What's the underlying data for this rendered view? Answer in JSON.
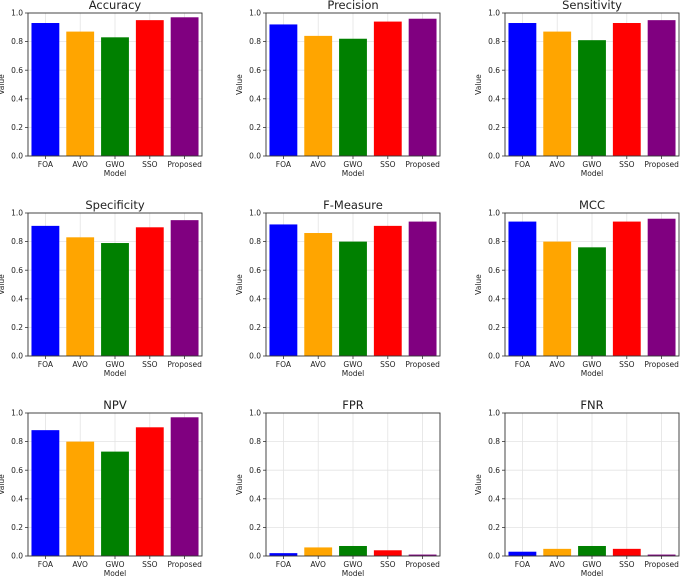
{
  "chart_data": [
    {
      "type": "bar",
      "title": "Accuracy",
      "categories": [
        "FOA",
        "AVO",
        "GWO",
        "SSO",
        "Proposed"
      ],
      "values": [
        0.93,
        0.87,
        0.83,
        0.95,
        0.97
      ],
      "xlabel": "Model",
      "ylabel": "Value",
      "ylim": [
        0,
        1.0
      ],
      "yticks": [
        "0.0",
        "0.2",
        "0.4",
        "0.6",
        "0.8",
        "1.0"
      ],
      "grid": true
    },
    {
      "type": "bar",
      "title": "Precision",
      "categories": [
        "FOA",
        "AVO",
        "GWO",
        "SSO",
        "Proposed"
      ],
      "values": [
        0.92,
        0.84,
        0.82,
        0.94,
        0.96
      ],
      "xlabel": "Model",
      "ylabel": "Value",
      "ylim": [
        0,
        1.0
      ],
      "yticks": [
        "0.0",
        "0.2",
        "0.4",
        "0.6",
        "0.8",
        "1.0"
      ],
      "grid": true
    },
    {
      "type": "bar",
      "title": "Sensitivity",
      "categories": [
        "FOA",
        "AVO",
        "GWO",
        "SSO",
        "Proposed"
      ],
      "values": [
        0.93,
        0.87,
        0.81,
        0.93,
        0.95
      ],
      "xlabel": "Model",
      "ylabel": "Value",
      "ylim": [
        0,
        1.0
      ],
      "yticks": [
        "0.0",
        "0.2",
        "0.4",
        "0.6",
        "0.8",
        "1.0"
      ],
      "grid": true
    },
    {
      "type": "bar",
      "title": "Specificity",
      "categories": [
        "FOA",
        "AVO",
        "GWO",
        "SSO",
        "Proposed"
      ],
      "values": [
        0.91,
        0.83,
        0.79,
        0.9,
        0.95
      ],
      "xlabel": "Model",
      "ylabel": "Value",
      "ylim": [
        0,
        1.0
      ],
      "yticks": [
        "0.0",
        "0.2",
        "0.4",
        "0.6",
        "0.8",
        "1.0"
      ],
      "grid": true
    },
    {
      "type": "bar",
      "title": "F-Measure",
      "categories": [
        "FOA",
        "AVO",
        "GWO",
        "SSO",
        "Proposed"
      ],
      "values": [
        0.92,
        0.86,
        0.8,
        0.91,
        0.94
      ],
      "xlabel": "Model",
      "ylabel": "Value",
      "ylim": [
        0,
        1.0
      ],
      "yticks": [
        "0.0",
        "0.2",
        "0.4",
        "0.6",
        "0.8",
        "1.0"
      ],
      "grid": true
    },
    {
      "type": "bar",
      "title": "MCC",
      "categories": [
        "FOA",
        "AVO",
        "GWO",
        "SSO",
        "Proposed"
      ],
      "values": [
        0.94,
        0.8,
        0.76,
        0.94,
        0.96
      ],
      "xlabel": "Model",
      "ylabel": "Value",
      "ylim": [
        0,
        1.0
      ],
      "yticks": [
        "0.0",
        "0.2",
        "0.4",
        "0.6",
        "0.8",
        "1.0"
      ],
      "grid": true
    },
    {
      "type": "bar",
      "title": "NPV",
      "categories": [
        "FOA",
        "AVO",
        "GWO",
        "SSO",
        "Proposed"
      ],
      "values": [
        0.88,
        0.8,
        0.73,
        0.9,
        0.97
      ],
      "xlabel": "Model",
      "ylabel": "Value",
      "ylim": [
        0,
        1.0
      ],
      "yticks": [
        "0.0",
        "0.2",
        "0.4",
        "0.6",
        "0.8",
        "1.0"
      ],
      "grid": true
    },
    {
      "type": "bar",
      "title": "FPR",
      "categories": [
        "FOA",
        "AVO",
        "GWO",
        "SSO",
        "Proposed"
      ],
      "values": [
        0.02,
        0.06,
        0.07,
        0.04,
        0.01
      ],
      "xlabel": "Model",
      "ylabel": "Value",
      "ylim": [
        0,
        1.0
      ],
      "yticks": [
        "0.0",
        "0.2",
        "0.4",
        "0.6",
        "0.8",
        "1.0"
      ],
      "grid": true
    },
    {
      "type": "bar",
      "title": "FNR",
      "categories": [
        "FOA",
        "AVO",
        "GWO",
        "SSO",
        "Proposed"
      ],
      "values": [
        0.03,
        0.05,
        0.07,
        0.05,
        0.01
      ],
      "xlabel": "Model",
      "ylabel": "Value",
      "ylim": [
        0,
        1.0
      ],
      "yticks": [
        "0.0",
        "0.2",
        "0.4",
        "0.6",
        "0.8",
        "1.0"
      ],
      "grid": true
    }
  ],
  "bar_colors": [
    "#0000ff",
    "#ffa500",
    "#008000",
    "#ff0000",
    "#800080"
  ]
}
